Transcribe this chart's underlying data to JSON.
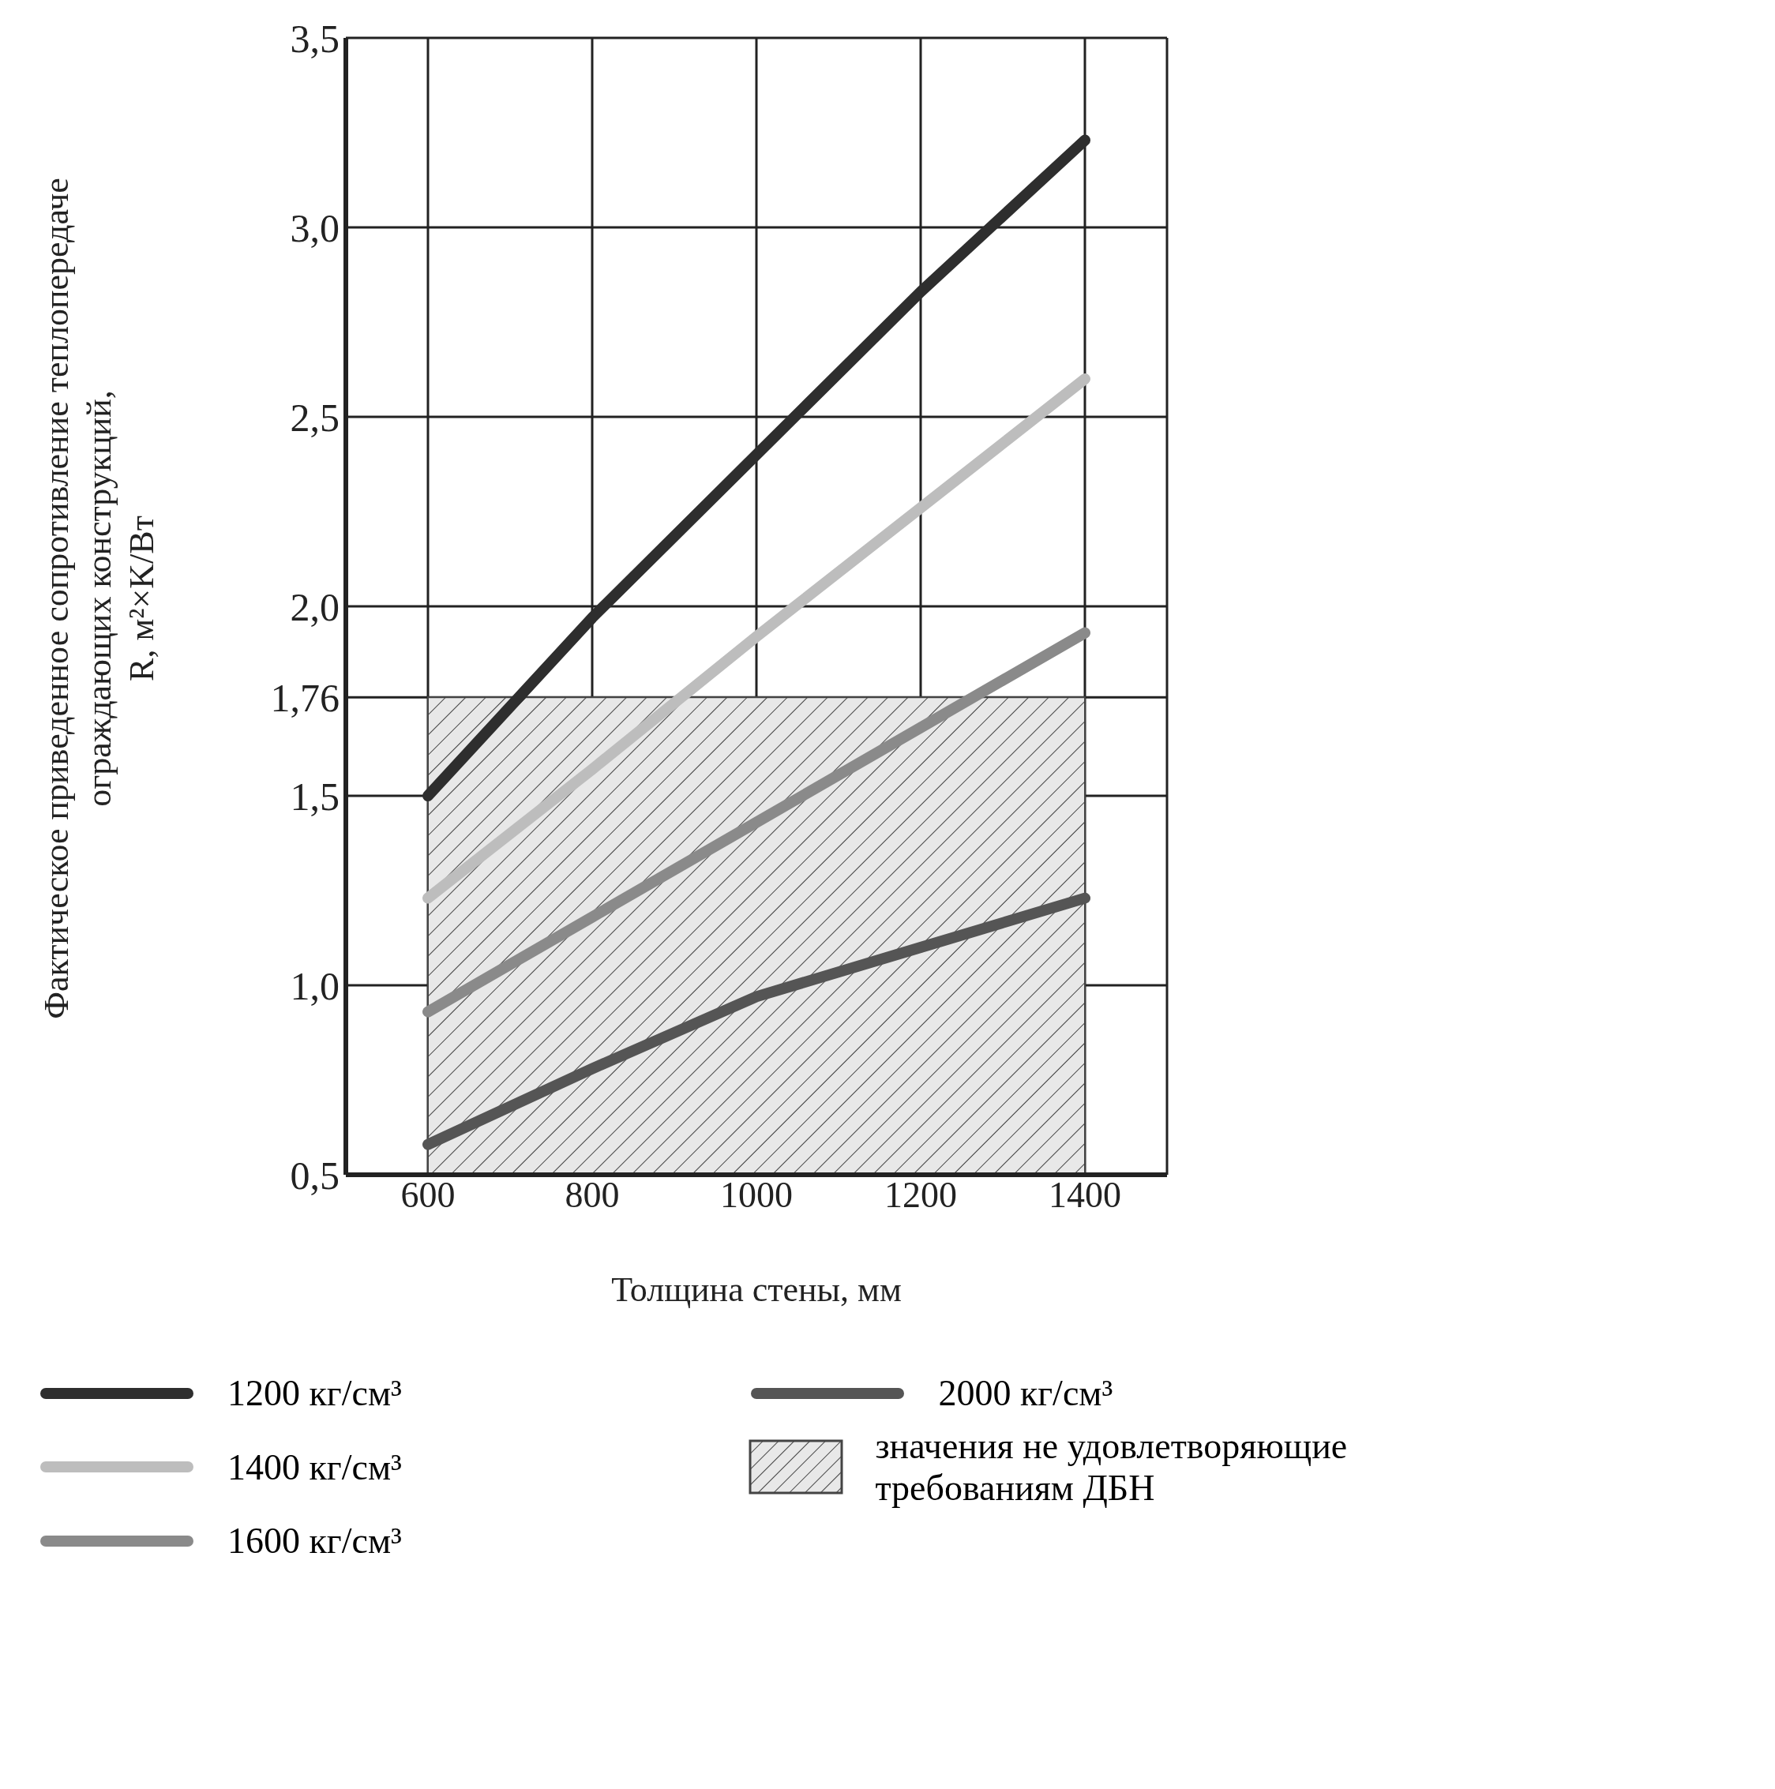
{
  "chart_data": {
    "type": "line",
    "xlabel": "Толщина стены, мм",
    "ylabel": "Фактическое приведенное сопротивление теплопередаче\nограждающих конструкций,\nR, м²×K/Вт",
    "x": [
      600,
      800,
      1000,
      1200,
      1400
    ],
    "series": [
      {
        "name": "1200 кг/см³",
        "color": "#2e2e2e",
        "values": [
          1.5,
          1.97,
          2.4,
          2.83,
          3.23
        ]
      },
      {
        "name": "1400 кг/см³",
        "color": "#bdbdbd",
        "values": [
          1.23,
          1.57,
          1.92,
          2.26,
          2.6
        ]
      },
      {
        "name": "1600 кг/см³",
        "color": "#8a8a8a",
        "values": [
          0.93,
          1.18,
          1.43,
          1.68,
          1.93
        ]
      },
      {
        "name": "2000 кг/см³",
        "color": "#555555",
        "values": [
          0.58,
          0.78,
          0.97,
          1.1,
          1.23
        ]
      }
    ],
    "bands": [
      {
        "axis": "y",
        "from": 0.5,
        "to": 1.76,
        "label": "значения не удовлетворяющие требованиям ДБН",
        "color": "#e8e8e8"
      }
    ],
    "xlim": [
      500,
      1500
    ],
    "xticks": [
      600,
      800,
      1000,
      1200,
      1400
    ],
    "ylim": [
      0.5,
      3.5
    ],
    "yticks": [
      {
        "value": 0.5,
        "label": "0,5"
      },
      {
        "value": 1,
        "label": "1,0"
      },
      {
        "value": 1.5,
        "label": "1,5"
      },
      {
        "value": 1.76,
        "label": "1,76"
      },
      {
        "value": 2,
        "label": "2,0"
      },
      {
        "value": 2.5,
        "label": "2,5"
      },
      {
        "value": 3,
        "label": "3,0"
      },
      {
        "value": 3.5,
        "label": "3,5"
      }
    ],
    "grid": true,
    "legend": "bottom",
    "marker": "none",
    "line_style": "solid"
  }
}
